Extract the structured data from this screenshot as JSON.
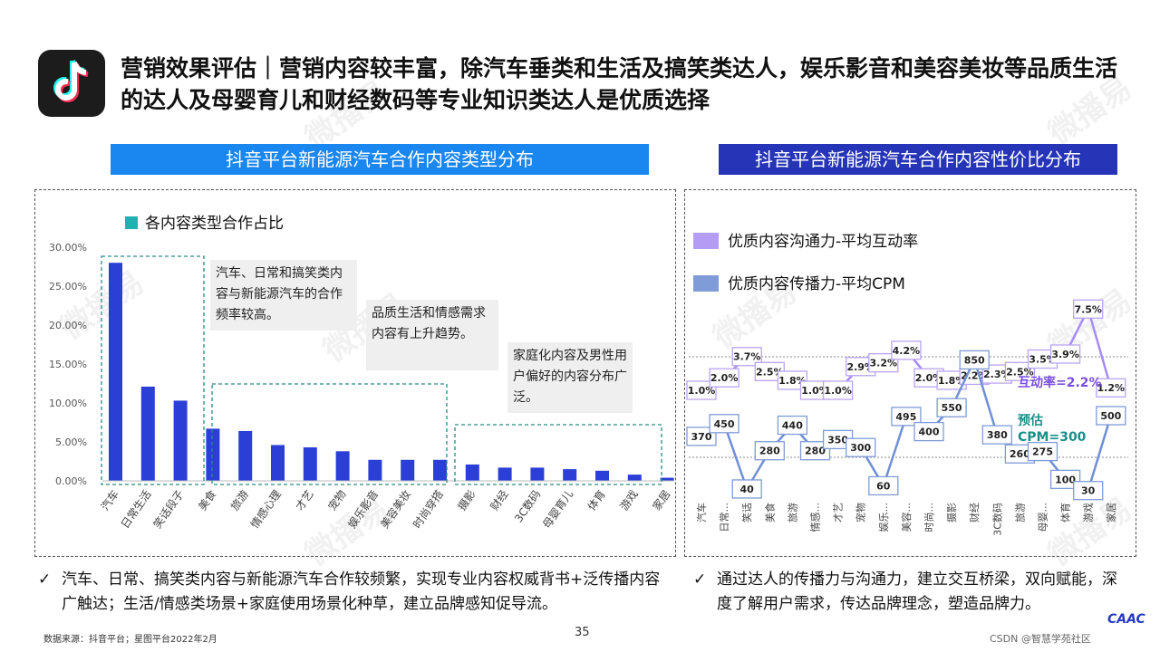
{
  "title": "营销效果评估｜营销内容较丰富，除汽车垂类和生活及搞笑类达人，娱乐影音和美容美妆等品质生活的达人及母婴育儿和财经数码等专业知识类达人是优质选择",
  "watermark_text": "微播易",
  "left_banner": "抖音平台新能源汽车合作内容类型分布",
  "right_banner": "抖音平台新能源汽车合作内容性价比分布",
  "colors": {
    "bar": "#2b3fd6",
    "banner_left": "#1a86f0",
    "banner_right": "#2634b8",
    "line_top": "#a78bfa",
    "line_bottom": "#6f8fd8",
    "accent_purple": "#7a4fe0",
    "accent_teal": "#1a8f8a"
  },
  "chart_data": [
    {
      "type": "bar",
      "legend": "各内容类型合作占比",
      "categories": [
        "汽车",
        "日常生活",
        "笑话段子",
        "美食",
        "旅游",
        "情感心理",
        "才艺",
        "宠物",
        "娱乐影音",
        "美容美妆",
        "时尚穿搭",
        "摄影",
        "财经",
        "3C数码",
        "母婴育儿",
        "体育",
        "游戏",
        "家居"
      ],
      "values": [
        28.0,
        12.1,
        10.3,
        6.7,
        6.4,
        4.6,
        4.3,
        3.8,
        2.7,
        2.7,
        2.7,
        2.1,
        1.7,
        1.7,
        1.5,
        1.3,
        0.8,
        0.4
      ],
      "y_ticks": [
        "30.00%",
        "25.00%",
        "20.00%",
        "15.00%",
        "10.00%",
        "5.00%",
        "0.00%"
      ],
      "ylim": [
        0,
        30
      ],
      "annotations": [
        "汽车、日常和搞笑类内容与新能源汽车的合作频率较高。",
        "品质生活和情感需求内容有上升趋势。",
        "家庭化内容及男性用户偏好的内容分布广泛。"
      ]
    },
    {
      "type": "line",
      "categories": [
        "汽车",
        "日常...",
        "笑话",
        "美食",
        "旅游",
        "情感...",
        "才艺",
        "宠物",
        "娱乐...",
        "美容...",
        "时尚...",
        "摄影",
        "财经",
        "3C数码",
        "旅游",
        "母婴...",
        "体育",
        "游戏",
        "家居"
      ],
      "series": [
        {
          "name": "优质内容沟通力-平均互动率",
          "values": [
            1.0,
            2.0,
            3.7,
            2.5,
            1.8,
            1.0,
            1.0,
            2.9,
            3.2,
            4.2,
            2.0,
            1.8,
            2.2,
            2.3,
            2.5,
            3.5,
            3.9,
            7.5,
            1.2
          ],
          "labels": [
            "1.0%",
            "2.0%",
            "3.7%",
            "2.5%",
            "1.8%",
            "1.0%",
            "1.0%",
            "2.9%",
            "3.2%",
            "4.2%",
            "2.0%",
            "1.8%",
            "2.2%",
            "2.3%",
            "2.5%",
            "3.5%",
            "3.9%",
            "7.5%",
            "1.2%"
          ]
        },
        {
          "name": "优质内容传播力-平均CPM",
          "values": [
            370,
            450,
            40,
            280,
            440,
            280,
            350,
            300,
            60,
            495,
            400,
            550,
            850,
            380,
            260,
            275,
            100,
            30,
            500
          ],
          "labels": [
            "370",
            "450",
            "40",
            "280",
            "440",
            "280",
            "350",
            "300",
            "60",
            "495",
            "400",
            "550",
            "850",
            "380",
            "260",
            "275",
            "100",
            "30",
            "500"
          ]
        }
      ],
      "reference_lines": {
        "rate": "互动率=2.2%",
        "cpm_label": "预估",
        "cpm_value": "CPM=300"
      }
    }
  ],
  "left_note": "汽车、日常、搞笑类内容与新能源汽车合作较频繁，实现专业内容权威背书+泛传播内容广触达；生活/情感类场景+家庭使用场景化种草，建立品牌感知促导流。",
  "right_note": "通过达人的传播力与沟通力，建立交互桥梁，双向赋能，深度了解用户需求，传达品牌理念，塑造品牌力。",
  "check_mark": "✓",
  "source": "数据来源：抖音平台；星图平台2022年2月",
  "page_number": "35",
  "footer_brand": "CAAC",
  "footer_credit": "CSDN @智慧学苑社区"
}
